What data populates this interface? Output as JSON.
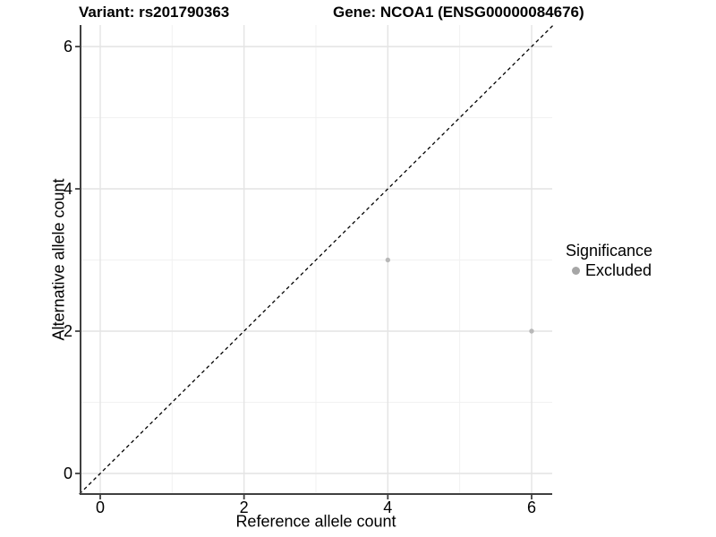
{
  "header": {
    "variant_title": "Variant: rs201790363",
    "gene_title": "Gene: NCOA1 (ENSG00000084676)"
  },
  "chart_data": {
    "type": "scatter",
    "title": "",
    "xlabel": "Reference allele count",
    "ylabel": "Alternative allele count",
    "xlim": [
      -0.3,
      6.3
    ],
    "ylim": [
      -0.3,
      6.3
    ],
    "xticks": [
      0,
      2,
      4,
      6
    ],
    "yticks": [
      0,
      2,
      4,
      6
    ],
    "grid": {
      "enabled": true,
      "minor_x": [
        1,
        3,
        5
      ],
      "minor_y": [
        1,
        3,
        5
      ]
    },
    "identity_line": {
      "style": "dashed",
      "slope": 1,
      "intercept": 0,
      "from": -0.29,
      "to": 6.3
    },
    "series": [
      {
        "name": "Excluded",
        "points": [
          {
            "x": 4,
            "y": 3
          },
          {
            "x": 6,
            "y": 2
          }
        ]
      }
    ],
    "legend": {
      "title": "Significance",
      "position": "right",
      "entries": [
        {
          "label": "Excluded",
          "marker": "circle"
        }
      ]
    }
  },
  "colors": {
    "background": "#ffffff",
    "axis": "#404040",
    "grid_major": "#e4e4e4",
    "grid_minor": "#f1f1f1",
    "point": "#b8b8b8",
    "legend_dot": "#a6a6a6",
    "dashed_line": "#000000",
    "text": "#000000"
  }
}
